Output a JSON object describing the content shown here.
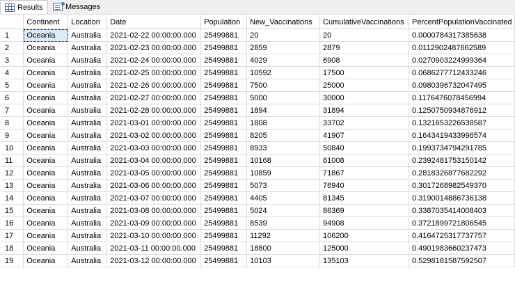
{
  "tabs": [
    {
      "label": "Results",
      "icon": "grid-icon",
      "active": true
    },
    {
      "label": "Messages",
      "icon": "messages-icon",
      "active": false
    }
  ],
  "columns": [
    "Continent",
    "Location",
    "Date",
    "Population",
    "New_Vaccinations",
    "CumulativeVaccinations",
    "PercentPopulationVaccinated"
  ],
  "rows": [
    [
      "1",
      "Oceania",
      "Australia",
      "2021-02-22 00:00:00.000",
      "25499881",
      "20",
      "20",
      "0.0000784317385638"
    ],
    [
      "2",
      "Oceania",
      "Australia",
      "2021-02-23 00:00:00.000",
      "25499881",
      "2859",
      "2879",
      "0.0112902487662589"
    ],
    [
      "3",
      "Oceania",
      "Australia",
      "2021-02-24 00:00:00.000",
      "25499881",
      "4029",
      "6908",
      "0.0270903224999364"
    ],
    [
      "4",
      "Oceania",
      "Australia",
      "2021-02-25 00:00:00.000",
      "25499881",
      "10592",
      "17500",
      "0.0686277712433246"
    ],
    [
      "5",
      "Oceania",
      "Australia",
      "2021-02-26 00:00:00.000",
      "25499881",
      "7500",
      "25000",
      "0.0980396732047495"
    ],
    [
      "6",
      "Oceania",
      "Australia",
      "2021-02-27 00:00:00.000",
      "25499881",
      "5000",
      "30000",
      "0.1176476078456994"
    ],
    [
      "7",
      "Oceania",
      "Australia",
      "2021-02-28 00:00:00.000",
      "25499881",
      "1894",
      "31894",
      "0.1250750934876912"
    ],
    [
      "8",
      "Oceania",
      "Australia",
      "2021-03-01 00:00:00.000",
      "25499881",
      "1808",
      "33702",
      "0.1321653226538587"
    ],
    [
      "9",
      "Oceania",
      "Australia",
      "2021-03-02 00:00:00.000",
      "25499881",
      "8205",
      "41907",
      "0.1643419433996574"
    ],
    [
      "10",
      "Oceania",
      "Australia",
      "2021-03-03 00:00:00.000",
      "25499881",
      "8933",
      "50840",
      "0.1993734794291785"
    ],
    [
      "11",
      "Oceania",
      "Australia",
      "2021-03-04 00:00:00.000",
      "25499881",
      "10168",
      "61008",
      "0.2392481753150142"
    ],
    [
      "12",
      "Oceania",
      "Australia",
      "2021-03-05 00:00:00.000",
      "25499881",
      "10859",
      "71867",
      "0.2818326877682292"
    ],
    [
      "13",
      "Oceania",
      "Australia",
      "2021-03-06 00:00:00.000",
      "25499881",
      "5073",
      "76940",
      "0.3017268982549370"
    ],
    [
      "14",
      "Oceania",
      "Australia",
      "2021-03-07 00:00:00.000",
      "25499881",
      "4405",
      "81345",
      "0.3190014886736138"
    ],
    [
      "15",
      "Oceania",
      "Australia",
      "2021-03-08 00:00:00.000",
      "25499881",
      "5024",
      "86369",
      "0.3387035414008403"
    ],
    [
      "16",
      "Oceania",
      "Australia",
      "2021-03-09 00:00:00.000",
      "25499881",
      "8539",
      "94908",
      "0.3721899721806545"
    ],
    [
      "17",
      "Oceania",
      "Australia",
      "2021-03-10 00:00:00.000",
      "25499881",
      "11292",
      "106200",
      "0.4164725317737757"
    ],
    [
      "18",
      "Oceania",
      "Australia",
      "2021-03-11 00:00:00.000",
      "25499881",
      "18800",
      "125000",
      "0.4901983660237473"
    ],
    [
      "19",
      "Oceania",
      "Australia",
      "2021-03-12 00:00:00.000",
      "25499881",
      "10103",
      "135103",
      "0.5298181587592507"
    ]
  ]
}
